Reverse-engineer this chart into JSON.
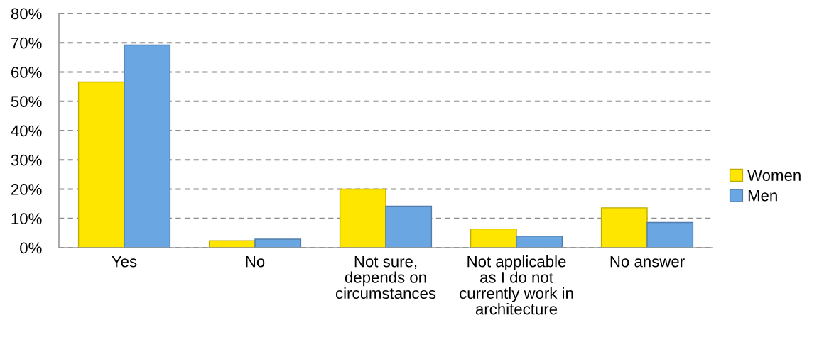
{
  "chart_data": {
    "type": "bar",
    "categories": [
      "Yes",
      "No",
      "Not sure,\ndepends on\ncircumstances",
      "Not applicable\nas I do not\ncurrently work in\narchitecture",
      "No answer"
    ],
    "series": [
      {
        "name": "Women",
        "color": "#ffe600",
        "values": [
          56.6,
          2.4,
          20.0,
          6.4,
          13.6
        ]
      },
      {
        "name": "Men",
        "color": "#6aa6e2",
        "values": [
          69.2,
          2.9,
          14.2,
          3.9,
          8.6
        ]
      }
    ],
    "ylim": [
      0,
      80
    ],
    "yticks": [
      {
        "value": 0,
        "label": "0%"
      },
      {
        "value": 10,
        "label": "10%"
      },
      {
        "value": 20,
        "label": "20%"
      },
      {
        "value": 30,
        "label": "30%"
      },
      {
        "value": 40,
        "label": "40%"
      },
      {
        "value": 50,
        "label": "50%"
      },
      {
        "value": 60,
        "label": "60%"
      },
      {
        "value": 70,
        "label": "70%"
      },
      {
        "value": 80,
        "label": "80%"
      }
    ],
    "grid": "y",
    "legend": "right"
  }
}
